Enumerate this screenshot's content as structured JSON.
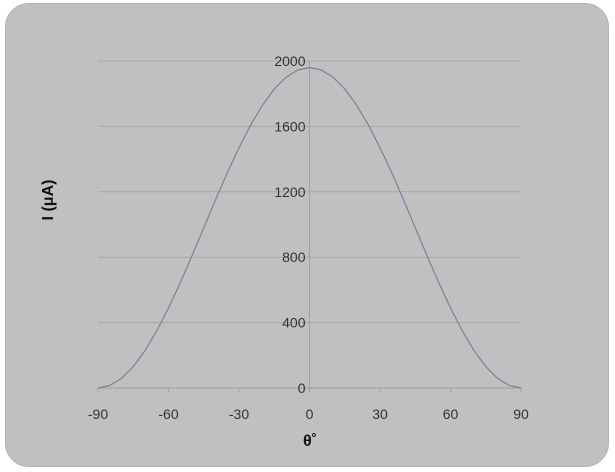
{
  "chart_data": {
    "type": "line",
    "title": "",
    "xlabel": "θ˚",
    "ylabel": "I (μA)",
    "xlim": [
      -90,
      90
    ],
    "ylim": [
      0,
      2000
    ],
    "x_ticks": [
      "-90",
      "-60",
      "-30",
      "0",
      "30",
      "60",
      "90"
    ],
    "y_ticks": [
      "0",
      "400",
      "800",
      "1200",
      "1600",
      "2000"
    ],
    "grid": "horizontal",
    "legend": "none",
    "series": [
      {
        "color": "#7f7f9f",
        "x": [
          -90,
          -85,
          -80,
          -75,
          -70,
          -65,
          -60,
          -55,
          -50,
          -45,
          -40,
          -35,
          -30,
          -25,
          -20,
          -15,
          -10,
          -5,
          0,
          5,
          10,
          15,
          20,
          25,
          30,
          35,
          40,
          45,
          50,
          55,
          60,
          65,
          70,
          75,
          80,
          85,
          90
        ],
        "y": [
          0,
          15,
          59,
          131,
          229,
          350,
          490,
          644,
          809,
          980,
          1151,
          1316,
          1470,
          1610,
          1731,
          1829,
          1901,
          1945,
          1960,
          1945,
          1901,
          1829,
          1731,
          1610,
          1470,
          1316,
          1151,
          980,
          809,
          644,
          490,
          350,
          229,
          131,
          59,
          15,
          0
        ]
      }
    ],
    "colors": {
      "background": "#c0c0c0",
      "grid": "#a8a8a8",
      "axis": "#a0a0a0",
      "line": "#7f7f9f"
    }
  }
}
